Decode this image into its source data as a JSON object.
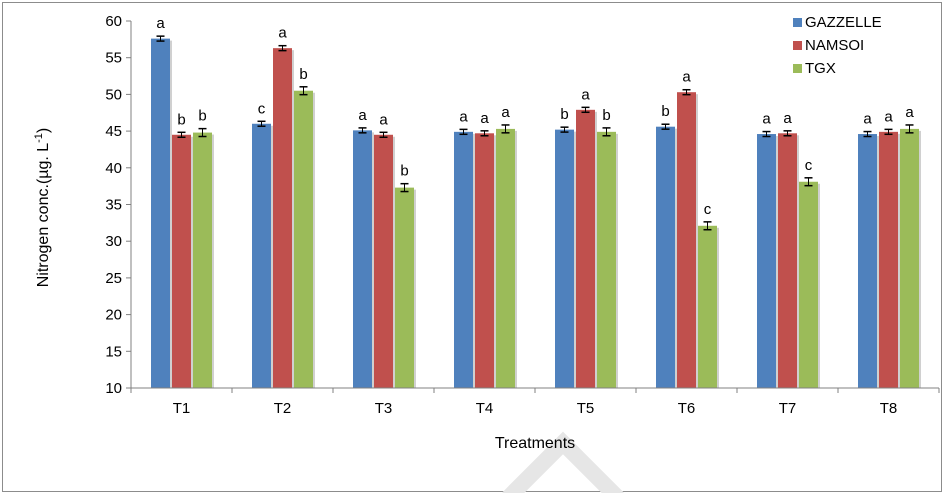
{
  "chart_data": {
    "type": "bar",
    "title": "",
    "xlabel": "Treatments",
    "ylabel_main": "Nitrogen conc.(µg. L",
    "ylabel_sup": "-1",
    "ylabel_close": ")",
    "ylim": [
      10,
      60
    ],
    "yticks": [
      10,
      15,
      20,
      25,
      30,
      35,
      40,
      45,
      50,
      55,
      60
    ],
    "grid": false,
    "legend_position": "top-right",
    "categories": [
      "T1",
      "T2",
      "T3",
      "T4",
      "T5",
      "T6",
      "T7",
      "T8"
    ],
    "series": [
      {
        "name": "GAZZELLE",
        "color": "#4f81bd",
        "values": [
          57.6,
          46.0,
          45.1,
          44.9,
          45.2,
          45.6,
          44.6,
          44.6
        ],
        "errors": [
          0.2,
          0.2,
          0.2,
          0.2,
          0.2,
          0.2,
          0.2,
          0.2
        ],
        "letters": [
          "a",
          "c",
          "a",
          "a",
          "b",
          "b",
          "a",
          "a"
        ]
      },
      {
        "name": "NAMSOI",
        "color": "#c0504d",
        "values": [
          44.5,
          56.3,
          44.5,
          44.7,
          47.9,
          50.3,
          44.7,
          44.9
        ],
        "errors": [
          0.2,
          0.2,
          0.2,
          0.2,
          0.2,
          0.2,
          0.2,
          0.2
        ],
        "letters": [
          "b",
          "a",
          "a",
          "a",
          "a",
          "a",
          "a",
          "a"
        ]
      },
      {
        "name": "TGX",
        "color": "#9bbb59",
        "values": [
          44.8,
          50.5,
          37.3,
          45.3,
          44.9,
          32.1,
          38.1,
          45.3
        ],
        "errors": [
          0.4,
          0.4,
          0.4,
          0.4,
          0.4,
          0.4,
          0.4,
          0.4
        ],
        "letters": [
          "b",
          "b",
          "b",
          "a",
          "b",
          "c",
          "c",
          "a"
        ]
      }
    ]
  }
}
